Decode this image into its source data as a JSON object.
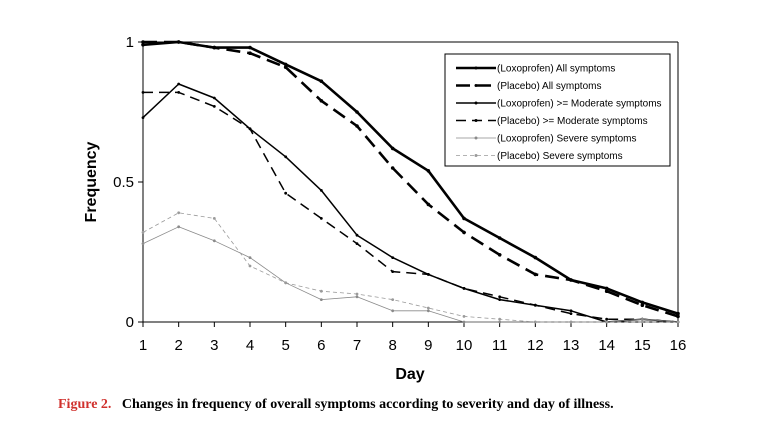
{
  "caption": {
    "label": "Figure 2.",
    "text": "Changes in frequency of overall symptoms according to severity and day of illness."
  },
  "chart_data": {
    "type": "line",
    "title": "",
    "xlabel": "Day",
    "ylabel": "Frequency",
    "x": [
      1,
      2,
      3,
      4,
      5,
      6,
      7,
      8,
      9,
      10,
      11,
      12,
      13,
      14,
      15,
      16
    ],
    "xlim": [
      1,
      16
    ],
    "ylim": [
      0,
      1
    ],
    "y_ticks": [
      "0",
      "0.5",
      "1"
    ],
    "x_ticks": [
      "1",
      "2",
      "3",
      "4",
      "5",
      "6",
      "7",
      "8",
      "9",
      "10",
      "11",
      "12",
      "13",
      "14",
      "15",
      "16"
    ],
    "grid": false,
    "legend_position": "top-right",
    "series": [
      {
        "name": "(Loxoprofen) All symptoms",
        "style": "solid",
        "weight": "thick",
        "color": "#000000",
        "values": [
          0.99,
          1.0,
          0.98,
          0.98,
          0.92,
          0.86,
          0.75,
          0.62,
          0.54,
          0.37,
          0.3,
          0.23,
          0.15,
          0.12,
          0.07,
          0.03
        ]
      },
      {
        "name": "(Placebo) All symptoms",
        "style": "dashed",
        "weight": "thick",
        "color": "#000000",
        "values": [
          1.0,
          1.0,
          0.98,
          0.96,
          0.91,
          0.79,
          0.7,
          0.55,
          0.42,
          0.32,
          0.24,
          0.17,
          0.15,
          0.11,
          0.06,
          0.02
        ]
      },
      {
        "name": "(Loxoprofen) >= Moderate symptoms",
        "style": "solid",
        "weight": "medium",
        "color": "#000000",
        "values": [
          0.73,
          0.85,
          0.8,
          0.69,
          0.59,
          0.47,
          0.31,
          0.23,
          0.17,
          0.12,
          0.08,
          0.06,
          0.04,
          0.0,
          0.01,
          0.0
        ]
      },
      {
        "name": "(Placebo) >= Moderate symptoms",
        "style": "dashed",
        "weight": "medium",
        "color": "#000000",
        "values": [
          0.82,
          0.82,
          0.77,
          0.69,
          0.46,
          0.37,
          0.28,
          0.18,
          0.17,
          0.12,
          0.09,
          0.06,
          0.03,
          0.01,
          0.01,
          0.0
        ]
      },
      {
        "name": "(Loxoprofen) Severe symptoms",
        "style": "solid",
        "weight": "thin",
        "color": "#8a8a8a",
        "values": [
          0.28,
          0.34,
          0.29,
          0.23,
          0.14,
          0.08,
          0.09,
          0.04,
          0.04,
          0.0,
          0.0,
          0.0,
          0.0,
          0.0,
          0.01,
          0.0
        ]
      },
      {
        "name": "(Placebo) Severe symptoms",
        "style": "dashed",
        "weight": "thin",
        "color": "#9a9a9a",
        "values": [
          0.32,
          0.39,
          0.37,
          0.2,
          0.14,
          0.11,
          0.1,
          0.08,
          0.05,
          0.02,
          0.01,
          0.0,
          0.0,
          0.0,
          0.0,
          0.0
        ]
      }
    ]
  }
}
